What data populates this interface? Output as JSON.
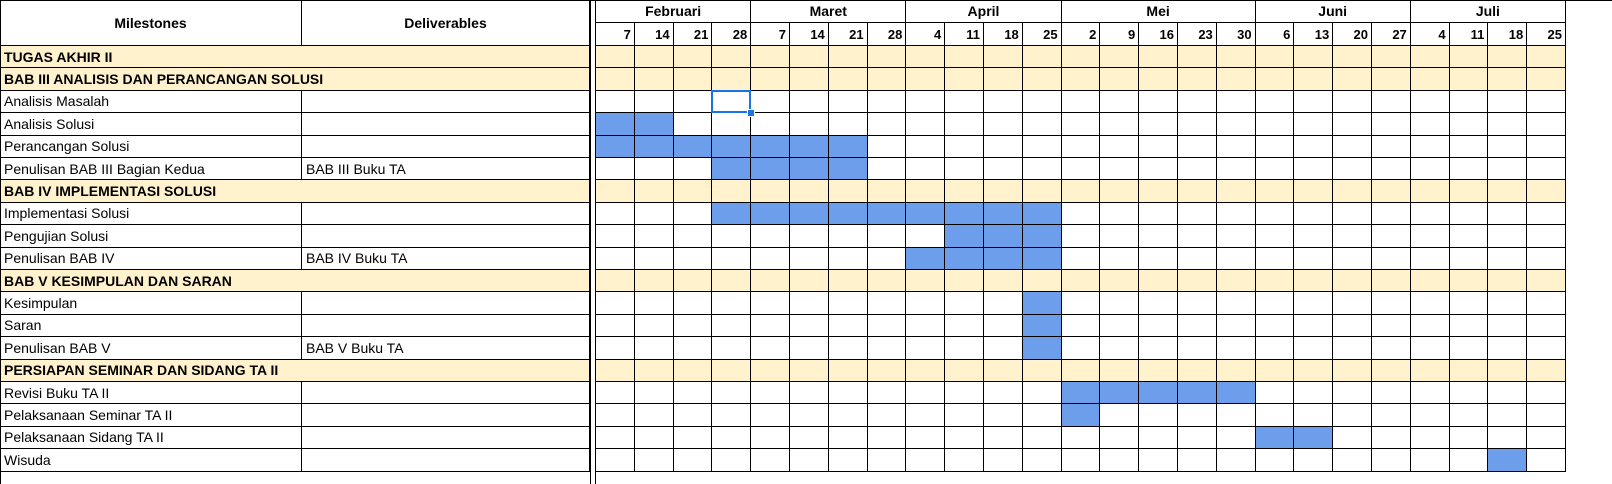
{
  "headers": {
    "milestones": "Milestones",
    "deliverables": "Deliverables"
  },
  "months": [
    {
      "name": "Februari",
      "span": 4
    },
    {
      "name": "Maret",
      "span": 4
    },
    {
      "name": "April",
      "span": 4
    },
    {
      "name": "Mei",
      "span": 5
    },
    {
      "name": "Juni",
      "span": 4
    },
    {
      "name": "Juli",
      "span": 4
    }
  ],
  "weeks": [
    "7",
    "14",
    "21",
    "28",
    "7",
    "14",
    "21",
    "28",
    "4",
    "11",
    "18",
    "25",
    "2",
    "9",
    "16",
    "23",
    "30",
    "6",
    "13",
    "20",
    "27",
    "4",
    "11",
    "18",
    "25"
  ],
  "rows": [
    {
      "type": "section",
      "label": "TUGAS AKHIR II"
    },
    {
      "type": "section",
      "label": "BAB III ANALISIS DAN PERANCANGAN SOLUSI"
    },
    {
      "type": "task",
      "label": "Analisis Masalah",
      "deliverable": "",
      "bars": []
    },
    {
      "type": "task",
      "label": "Analisis Solusi",
      "deliverable": "",
      "bars": [
        0,
        1
      ]
    },
    {
      "type": "task",
      "label": "Perancangan Solusi",
      "deliverable": "",
      "bars": [
        0,
        1,
        2,
        3,
        4,
        5,
        6
      ]
    },
    {
      "type": "task",
      "label": "Penulisan BAB III Bagian Kedua",
      "deliverable": "BAB III Buku TA",
      "bars": [
        3,
        4,
        5,
        6
      ]
    },
    {
      "type": "section",
      "label": "BAB IV IMPLEMENTASI SOLUSI"
    },
    {
      "type": "task",
      "label": "Implementasi Solusi",
      "deliverable": "",
      "bars": [
        3,
        4,
        5,
        6,
        7,
        8,
        9,
        10,
        11
      ]
    },
    {
      "type": "task",
      "label": "Pengujian Solusi",
      "deliverable": "",
      "bars": [
        9,
        10,
        11
      ]
    },
    {
      "type": "task",
      "label": "Penulisan BAB IV",
      "deliverable": "BAB IV Buku TA",
      "bars": [
        8,
        9,
        10,
        11
      ]
    },
    {
      "type": "section",
      "label": "BAB V KESIMPULAN DAN SARAN"
    },
    {
      "type": "task",
      "label": "Kesimpulan",
      "deliverable": "",
      "bars": [
        11
      ]
    },
    {
      "type": "task",
      "label": "Saran",
      "deliverable": "",
      "bars": [
        11
      ]
    },
    {
      "type": "task",
      "label": "Penulisan BAB V",
      "deliverable": "BAB V Buku TA",
      "bars": [
        11
      ]
    },
    {
      "type": "section",
      "label": "PERSIAPAN SEMINAR DAN SIDANG TA II"
    },
    {
      "type": "task",
      "label": "Revisi Buku TA II",
      "deliverable": "",
      "bars": [
        12,
        13,
        14,
        15,
        16
      ]
    },
    {
      "type": "task",
      "label": "Pelaksanaan Seminar TA II",
      "deliverable": "",
      "bars": [
        12
      ]
    },
    {
      "type": "task",
      "label": "Pelaksanaan Sidang TA II",
      "deliverable": "",
      "bars": [
        17,
        18
      ]
    },
    {
      "type": "task",
      "label": "Wisuda",
      "deliverable": "",
      "bars": [
        23
      ]
    }
  ],
  "selected_cell": {
    "row": 2,
    "week": 3
  },
  "colors": {
    "section_fill": "#fff2cc",
    "bar_fill": "#6d9eeb",
    "selection": "#1a73e8"
  }
}
